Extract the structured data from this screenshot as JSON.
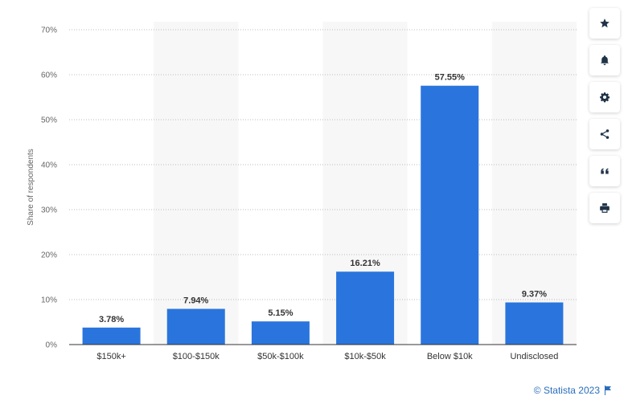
{
  "chart_data": {
    "type": "bar",
    "categories": [
      "$150k+",
      "$100-$150k",
      "$50k-$100k",
      "$10k-$50k",
      "Below $10k",
      "Undisclosed"
    ],
    "values": [
      3.78,
      7.94,
      5.15,
      16.21,
      57.55,
      9.37
    ],
    "value_labels": [
      "3.78%",
      "7.94%",
      "5.15%",
      "16.21%",
      "57.55%",
      "9.37%"
    ],
    "ylabel": "Share of respondents",
    "ylim": [
      0,
      70
    ],
    "yticks": [
      0,
      10,
      20,
      30,
      40,
      50,
      60,
      70
    ],
    "ytick_labels": [
      "0%",
      "10%",
      "20%",
      "30%",
      "40%",
      "50%",
      "60%",
      "70%"
    ],
    "bar_color": "#2a75dd",
    "band_color": "#f7f7f7",
    "grid": true
  },
  "toolbar": {
    "buttons": [
      {
        "name": "star-button",
        "icon": "star-icon"
      },
      {
        "name": "bell-button",
        "icon": "bell-icon"
      },
      {
        "name": "settings-button",
        "icon": "gear-icon"
      },
      {
        "name": "share-button",
        "icon": "share-icon"
      },
      {
        "name": "cite-button",
        "icon": "quote-icon"
      },
      {
        "name": "print-button",
        "icon": "print-icon"
      }
    ]
  },
  "credit": {
    "text": "© Statista 2023"
  }
}
